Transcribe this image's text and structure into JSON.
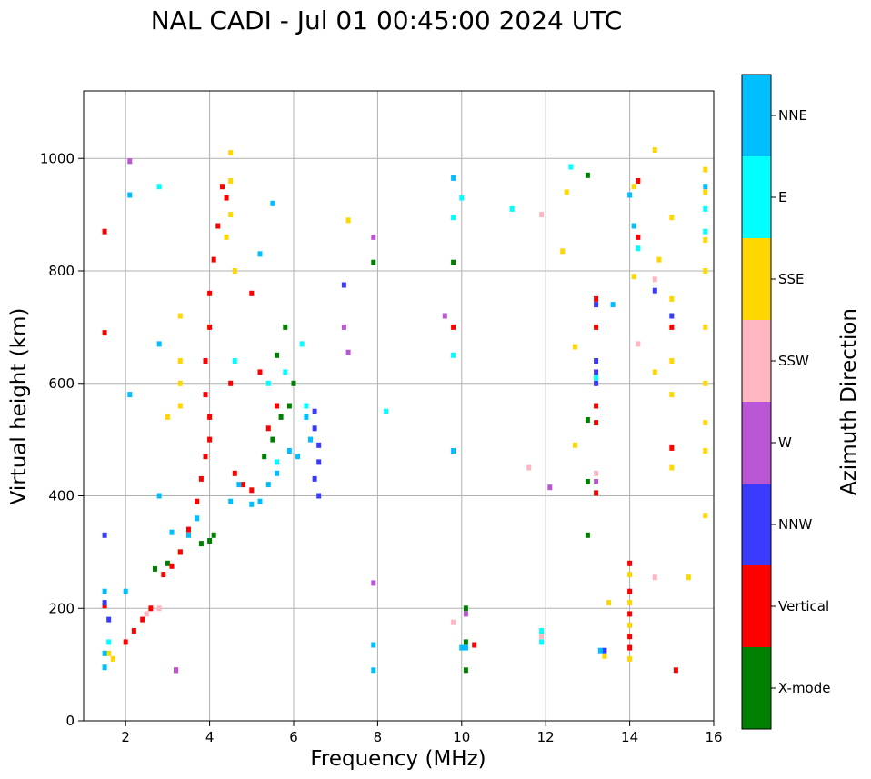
{
  "chart_data": {
    "type": "scatter",
    "title": "NAL CADI - Jul 01 00:45:00 2024 UTC",
    "xlabel": "Frequency (MHz)",
    "ylabel": "Virtual height (km)",
    "xlim": [
      1,
      16
    ],
    "ylim": [
      0,
      1120
    ],
    "xticks": [
      2,
      4,
      6,
      8,
      10,
      12,
      14,
      16
    ],
    "yticks": [
      0,
      200,
      400,
      600,
      800,
      1000
    ],
    "grid": true,
    "colorbar": {
      "label": "Azimuth Direction",
      "categories": [
        {
          "name": "X-mode",
          "color": "#008000"
        },
        {
          "name": "Vertical",
          "color": "#ff0000"
        },
        {
          "name": "NNW",
          "color": "#3a3aff"
        },
        {
          "name": "W",
          "color": "#ba55d3"
        },
        {
          "name": "SSW",
          "color": "#ffb6c1"
        },
        {
          "name": "SSE",
          "color": "#ffd700"
        },
        {
          "name": "E",
          "color": "#00ffff"
        },
        {
          "name": "NNE",
          "color": "#00bfff"
        }
      ]
    },
    "series": [
      {
        "name": "X-mode",
        "points": [
          [
            2.7,
            270
          ],
          [
            3.0,
            280
          ],
          [
            3.3,
            300
          ],
          [
            3.8,
            315
          ],
          [
            4.0,
            320
          ],
          [
            4.1,
            330
          ],
          [
            5.5,
            500
          ],
          [
            5.7,
            540
          ],
          [
            5.9,
            560
          ],
          [
            6.0,
            600
          ],
          [
            5.3,
            470
          ],
          [
            5.6,
            650
          ],
          [
            5.8,
            700
          ],
          [
            13.0,
            970
          ],
          [
            13.0,
            535
          ],
          [
            13.0,
            425
          ],
          [
            13.0,
            330
          ],
          [
            10.1,
            200
          ],
          [
            10.1,
            140
          ],
          [
            10.1,
            90
          ],
          [
            7.9,
            815
          ],
          [
            9.8,
            815
          ]
        ]
      },
      {
        "name": "Vertical",
        "points": [
          [
            1.5,
            870
          ],
          [
            1.5,
            690
          ],
          [
            1.5,
            205
          ],
          [
            2.0,
            140
          ],
          [
            2.2,
            160
          ],
          [
            2.4,
            180
          ],
          [
            2.6,
            200
          ],
          [
            2.9,
            260
          ],
          [
            3.1,
            275
          ],
          [
            3.3,
            300
          ],
          [
            3.5,
            340
          ],
          [
            3.7,
            390
          ],
          [
            3.8,
            430
          ],
          [
            3.9,
            470
          ],
          [
            4.0,
            500
          ],
          [
            4.0,
            540
          ],
          [
            3.9,
            580
          ],
          [
            3.9,
            640
          ],
          [
            4.0,
            700
          ],
          [
            4.0,
            760
          ],
          [
            4.1,
            820
          ],
          [
            4.2,
            880
          ],
          [
            4.4,
            930
          ],
          [
            4.3,
            950
          ],
          [
            4.5,
            600
          ],
          [
            4.6,
            440
          ],
          [
            4.8,
            420
          ],
          [
            5.0,
            410
          ],
          [
            5.2,
            620
          ],
          [
            5.4,
            520
          ],
          [
            5.6,
            560
          ],
          [
            5.0,
            760
          ],
          [
            13.2,
            750
          ],
          [
            13.2,
            700
          ],
          [
            13.2,
            560
          ],
          [
            13.2,
            530
          ],
          [
            13.2,
            405
          ],
          [
            14.0,
            280
          ],
          [
            14.0,
            230
          ],
          [
            14.0,
            190
          ],
          [
            14.0,
            150
          ],
          [
            14.0,
            130
          ],
          [
            14.2,
            960
          ],
          [
            14.2,
            860
          ],
          [
            15.0,
            700
          ],
          [
            15.0,
            485
          ],
          [
            15.1,
            90
          ],
          [
            9.8,
            700
          ],
          [
            10.3,
            135
          ],
          [
            3.2,
            90
          ]
        ]
      },
      {
        "name": "NNW",
        "points": [
          [
            1.5,
            330
          ],
          [
            1.5,
            210
          ],
          [
            1.6,
            180
          ],
          [
            6.5,
            550
          ],
          [
            6.5,
            520
          ],
          [
            6.6,
            490
          ],
          [
            6.6,
            460
          ],
          [
            6.5,
            430
          ],
          [
            6.6,
            400
          ],
          [
            13.2,
            740
          ],
          [
            13.2,
            640
          ],
          [
            13.2,
            620
          ],
          [
            13.2,
            600
          ],
          [
            13.4,
            125
          ],
          [
            7.2,
            775
          ],
          [
            14.6,
            765
          ],
          [
            15.0,
            720
          ]
        ]
      },
      {
        "name": "W",
        "points": [
          [
            13.2,
            425
          ],
          [
            12.1,
            415
          ],
          [
            7.9,
            860
          ],
          [
            9.6,
            720
          ],
          [
            7.2,
            700
          ],
          [
            7.3,
            655
          ],
          [
            7.9,
            245
          ],
          [
            10.1,
            190
          ],
          [
            3.2,
            90
          ],
          [
            2.1,
            995
          ]
        ]
      },
      {
        "name": "SSW",
        "points": [
          [
            11.9,
            900
          ],
          [
            13.2,
            440
          ],
          [
            11.6,
            450
          ],
          [
            14.6,
            255
          ],
          [
            14.6,
            785
          ],
          [
            14.2,
            670
          ],
          [
            2.8,
            200
          ],
          [
            2.5,
            190
          ],
          [
            9.8,
            175
          ],
          [
            11.9,
            150
          ]
        ]
      },
      {
        "name": "SSE",
        "points": [
          [
            1.6,
            120
          ],
          [
            1.7,
            110
          ],
          [
            3.3,
            560
          ],
          [
            3.3,
            600
          ],
          [
            3.3,
            640
          ],
          [
            3.3,
            720
          ],
          [
            4.5,
            1010
          ],
          [
            4.5,
            960
          ],
          [
            4.5,
            900
          ],
          [
            4.4,
            860
          ],
          [
            4.6,
            800
          ],
          [
            13.5,
            210
          ],
          [
            13.4,
            115
          ],
          [
            12.5,
            940
          ],
          [
            12.4,
            835
          ],
          [
            12.7,
            665
          ],
          [
            12.7,
            490
          ],
          [
            14.0,
            260
          ],
          [
            14.0,
            210
          ],
          [
            14.0,
            170
          ],
          [
            14.0,
            110
          ],
          [
            14.1,
            950
          ],
          [
            14.1,
            880
          ],
          [
            14.1,
            790
          ],
          [
            14.6,
            1015
          ],
          [
            14.7,
            820
          ],
          [
            14.6,
            620
          ],
          [
            15.0,
            750
          ],
          [
            15.0,
            640
          ],
          [
            15.0,
            580
          ],
          [
            15.0,
            450
          ],
          [
            15.0,
            895
          ],
          [
            15.4,
            255
          ],
          [
            15.8,
            980
          ],
          [
            15.8,
            940
          ],
          [
            15.8,
            855
          ],
          [
            15.8,
            800
          ],
          [
            15.8,
            700
          ],
          [
            15.8,
            600
          ],
          [
            15.8,
            530
          ],
          [
            15.8,
            480
          ],
          [
            15.8,
            365
          ],
          [
            3.0,
            540
          ],
          [
            7.3,
            890
          ]
        ]
      },
      {
        "name": "E",
        "points": [
          [
            1.6,
            140
          ],
          [
            2.8,
            950
          ],
          [
            4.6,
            640
          ],
          [
            5.4,
            600
          ],
          [
            5.8,
            620
          ],
          [
            6.2,
            670
          ],
          [
            6.3,
            560
          ],
          [
            5.6,
            460
          ],
          [
            13.2,
            610
          ],
          [
            12.6,
            985
          ],
          [
            14.2,
            840
          ],
          [
            11.2,
            910
          ],
          [
            8.2,
            550
          ],
          [
            10.0,
            930
          ],
          [
            9.8,
            895
          ],
          [
            9.8,
            650
          ],
          [
            11.9,
            160
          ],
          [
            11.9,
            140
          ],
          [
            15.8,
            910
          ],
          [
            15.8,
            870
          ]
        ]
      },
      {
        "name": "NNE",
        "points": [
          [
            1.5,
            230
          ],
          [
            1.5,
            120
          ],
          [
            1.5,
            95
          ],
          [
            2.0,
            230
          ],
          [
            2.1,
            580
          ],
          [
            2.1,
            935
          ],
          [
            2.8,
            670
          ],
          [
            2.8,
            400
          ],
          [
            3.1,
            335
          ],
          [
            3.5,
            330
          ],
          [
            3.7,
            360
          ],
          [
            4.5,
            390
          ],
          [
            4.7,
            420
          ],
          [
            5.0,
            385
          ],
          [
            5.2,
            390
          ],
          [
            5.4,
            420
          ],
          [
            5.6,
            440
          ],
          [
            5.9,
            480
          ],
          [
            6.1,
            470
          ],
          [
            6.3,
            540
          ],
          [
            6.4,
            500
          ],
          [
            5.2,
            830
          ],
          [
            5.5,
            920
          ],
          [
            14.0,
            935
          ],
          [
            14.1,
            880
          ],
          [
            15.8,
            950
          ],
          [
            13.3,
            125
          ],
          [
            10.1,
            130
          ],
          [
            9.8,
            965
          ],
          [
            9.8,
            480
          ],
          [
            13.6,
            740
          ],
          [
            7.9,
            135
          ],
          [
            7.9,
            90
          ],
          [
            10.0,
            130
          ]
        ]
      }
    ]
  }
}
